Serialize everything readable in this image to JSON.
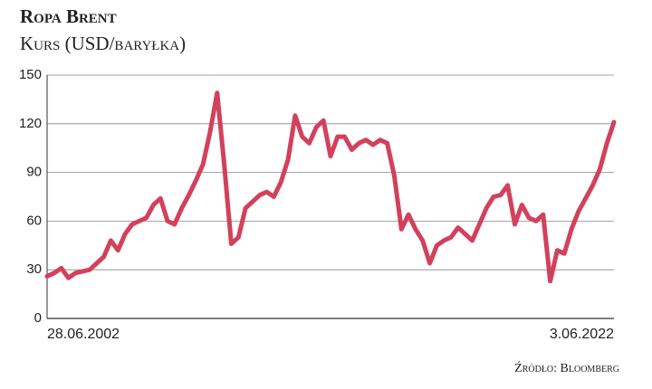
{
  "chart_data": {
    "type": "line",
    "title": "Ropa Brent",
    "subtitle": "Kurs (USD/baryłka)",
    "source": "Źródło: Bloomberg",
    "categories": [
      "28.06.2002",
      null,
      null,
      null,
      null,
      null,
      null,
      null,
      null,
      null,
      null,
      null,
      null,
      null,
      null,
      null,
      null,
      null,
      null,
      null,
      null,
      null,
      null,
      null,
      null,
      null,
      null,
      null,
      null,
      null,
      null,
      null,
      null,
      null,
      null,
      null,
      null,
      null,
      null,
      null,
      null,
      null,
      null,
      null,
      null,
      null,
      null,
      null,
      null,
      null,
      null,
      null,
      null,
      null,
      null,
      null,
      null,
      null,
      null,
      null,
      null,
      null,
      null,
      null,
      null,
      null,
      null,
      null,
      null,
      null,
      null,
      null,
      null,
      null,
      null,
      null,
      null,
      null,
      null,
      null,
      "3.06.2022"
    ],
    "series": [
      {
        "name": "Brent",
        "color": "#d2415c",
        "values": [
          26,
          28,
          31,
          25,
          28,
          29,
          30,
          34,
          38,
          48,
          42,
          52,
          58,
          60,
          62,
          70,
          74,
          60,
          58,
          68,
          76,
          85,
          95,
          115,
          139,
          95,
          46,
          50,
          68,
          72,
          76,
          78,
          75,
          84,
          98,
          125,
          112,
          108,
          118,
          122,
          100,
          112,
          112,
          104,
          108,
          110,
          107,
          110,
          108,
          88,
          55,
          64,
          55,
          48,
          34,
          45,
          48,
          50,
          56,
          52,
          48,
          58,
          68,
          75,
          76,
          82,
          58,
          70,
          62,
          60,
          64,
          23,
          42,
          40,
          55,
          66,
          74,
          82,
          92,
          108,
          121
        ]
      }
    ],
    "ylim": [
      0,
      150
    ],
    "yticks": [
      0,
      30,
      60,
      90,
      120,
      150
    ],
    "grid": true
  }
}
